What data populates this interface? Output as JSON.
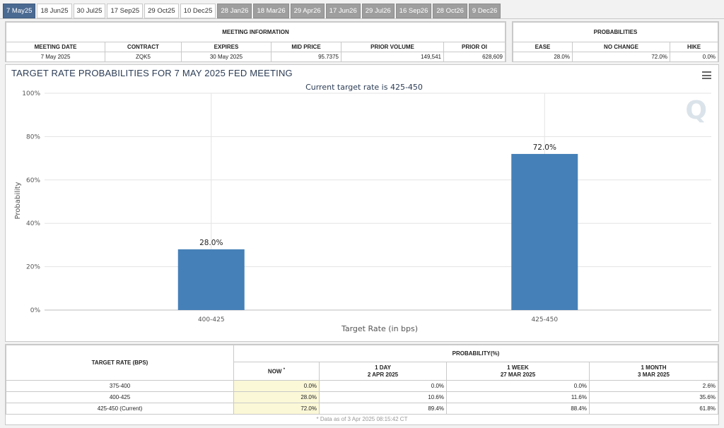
{
  "tabs": [
    {
      "label": "7 May25",
      "state": "active"
    },
    {
      "label": "18 Jun25",
      "state": "normal"
    },
    {
      "label": "30 Jul25",
      "state": "normal"
    },
    {
      "label": "17 Sep25",
      "state": "normal"
    },
    {
      "label": "29 Oct25",
      "state": "normal"
    },
    {
      "label": "10 Dec25",
      "state": "normal"
    },
    {
      "label": "28 Jan26",
      "state": "gray"
    },
    {
      "label": "18 Mar26",
      "state": "gray"
    },
    {
      "label": "29 Apr26",
      "state": "gray"
    },
    {
      "label": "17 Jun26",
      "state": "gray"
    },
    {
      "label": "29 Jul26",
      "state": "gray"
    },
    {
      "label": "16 Sep26",
      "state": "gray"
    },
    {
      "label": "28 Oct26",
      "state": "gray"
    },
    {
      "label": "9 Dec26",
      "state": "gray"
    }
  ],
  "meeting_info": {
    "title": "MEETING INFORMATION",
    "headers": [
      "MEETING DATE",
      "CONTRACT",
      "EXPIRES",
      "MID PRICE",
      "PRIOR VOLUME",
      "PRIOR OI"
    ],
    "row": [
      "7 May 2025",
      "ZQK5",
      "30 May 2025",
      "95.7375",
      "149,541",
      "628,609"
    ]
  },
  "probabilities": {
    "title": "PROBABILITIES",
    "headers": [
      "EASE",
      "NO CHANGE",
      "HIKE"
    ],
    "row": [
      "28.0%",
      "72.0%",
      "0.0%"
    ]
  },
  "chart": {
    "title": "TARGET RATE PROBABILITIES FOR 7 MAY 2025 FED MEETING",
    "subtitle": "Current target rate is 425-450"
  },
  "chart_data": {
    "type": "bar",
    "title": "TARGET RATE PROBABILITIES FOR 7 MAY 2025 FED MEETING",
    "subtitle": "Current target rate is 425-450",
    "categories": [
      "400-425",
      "425-450"
    ],
    "values": [
      28.0,
      72.0
    ],
    "data_labels": [
      "28.0%",
      "72.0%"
    ],
    "xlabel": "Target Rate (in bps)",
    "ylabel": "Probability",
    "ylim": [
      0,
      100
    ],
    "yticks": [
      "0%",
      "20%",
      "40%",
      "60%",
      "80%",
      "100%"
    ],
    "ytick_values": [
      0,
      20,
      40,
      60,
      80,
      100
    ],
    "grid": true,
    "bar_color": "#4580b8"
  },
  "prob_table": {
    "target_header": "TARGET RATE (BPS)",
    "prob_header": "PROBABILITY(%)",
    "col_now": "NOW",
    "col_now_mark": "*",
    "col_1day": "1 DAY",
    "col_1day_date": "2 APR 2025",
    "col_1week": "1 WEEK",
    "col_1week_date": "27 MAR 2025",
    "col_1month": "1 MONTH",
    "col_1month_date": "3 MAR 2025",
    "rows": [
      {
        "rate": "375-400",
        "now": "0.0%",
        "day": "0.0%",
        "week": "0.0%",
        "month": "2.6%"
      },
      {
        "rate": "400-425",
        "now": "28.0%",
        "day": "10.6%",
        "week": "11.6%",
        "month": "35.6%"
      },
      {
        "rate": "425-450 (Current)",
        "now": "72.0%",
        "day": "89.4%",
        "week": "88.4%",
        "month": "61.8%"
      }
    ],
    "footnote": "* Data as of 3 Apr 2025 08:15:42 CT"
  }
}
